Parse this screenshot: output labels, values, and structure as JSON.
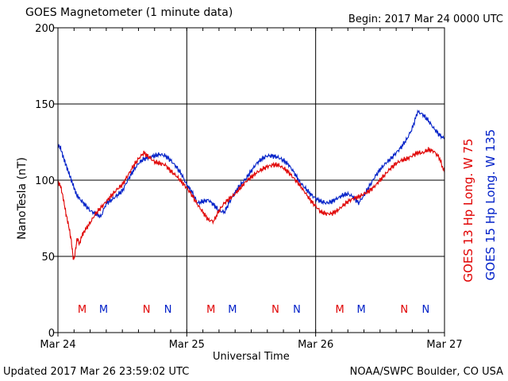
{
  "header": {
    "title": "GOES Magnetometer (1 minute data)",
    "begin": "Begin:  2017 Mar 24 0000 UTC"
  },
  "footer": {
    "updated": "Updated 2017 Mar 26 23:59:02 UTC",
    "source": "NOAA/SWPC Boulder, CO USA"
  },
  "colors": {
    "goes13": "#e00000",
    "goes15": "#0020c8"
  },
  "chart_data": {
    "type": "line",
    "title": "GOES Magnetometer (1 minute data)",
    "xlabel": "Universal Time",
    "ylabel": "NanoTesla (nT)",
    "xlim": [
      0,
      72
    ],
    "ylim": [
      0,
      200
    ],
    "yticks": [
      0,
      50,
      100,
      150,
      200
    ],
    "xticks": [
      {
        "hour": 0,
        "label": "Mar 24"
      },
      {
        "hour": 24,
        "label": "Mar 25"
      },
      {
        "hour": 48,
        "label": "Mar 26"
      },
      {
        "hour": 72,
        "label": "Mar 27"
      }
    ],
    "grid": true,
    "series": [
      {
        "name": "GOES 13 Hp",
        "legend": "GOES 13 Hp  Long. W 75",
        "color": "#e00000",
        "x": [
          0,
          0.5,
          1,
          1.5,
          2,
          2.5,
          2.8,
          3,
          3.3,
          3.6,
          4,
          4.5,
          5,
          6,
          7,
          8,
          9,
          10,
          11,
          12,
          13,
          14,
          15,
          16,
          17,
          18,
          19,
          20,
          21,
          22,
          23,
          24,
          25,
          26,
          27,
          28,
          29,
          30,
          31,
          32,
          33,
          34,
          35,
          36,
          37,
          38,
          39,
          40,
          41,
          42,
          43,
          44,
          45,
          46,
          47,
          48,
          49,
          50,
          51,
          52,
          53,
          54,
          55,
          56,
          57,
          58,
          59,
          60,
          61,
          62,
          63,
          64,
          65,
          66,
          67,
          68,
          69,
          70,
          71,
          72
        ],
        "y": [
          99,
          96,
          88,
          78,
          70,
          60,
          50,
          48,
          55,
          62,
          58,
          64,
          67,
          72,
          78,
          82,
          86,
          90,
          94,
          97,
          103,
          109,
          114,
          118,
          115,
          112,
          111,
          110,
          106,
          103,
          99,
          95,
          90,
          84,
          79,
          74,
          73,
          80,
          85,
          88,
          91,
          95,
          99,
          102,
          105,
          107,
          109,
          110,
          110,
          108,
          105,
          101,
          97,
          92,
          87,
          83,
          79,
          78,
          78,
          80,
          83,
          86,
          88,
          89,
          91,
          93,
          96,
          100,
          104,
          108,
          111,
          113,
          114,
          116,
          118,
          118,
          120,
          119,
          115,
          105
        ]
      },
      {
        "name": "GOES 15 Hp",
        "legend": "GOES 15 Hp  Long. W 135",
        "color": "#0020c8",
        "x": [
          0,
          0.5,
          1,
          1.5,
          2,
          2.5,
          3,
          3.5,
          4,
          5,
          6,
          7,
          8,
          9,
          10,
          11,
          12,
          13,
          14,
          15,
          16,
          17,
          18,
          19,
          20,
          21,
          22,
          23,
          24,
          25,
          26,
          27,
          28,
          29,
          30,
          31,
          32,
          33,
          34,
          35,
          36,
          37,
          38,
          39,
          40,
          41,
          42,
          43,
          44,
          45,
          46,
          47,
          48,
          49,
          50,
          51,
          52,
          53,
          54,
          55,
          56,
          57,
          58,
          59,
          60,
          61,
          62,
          63,
          64,
          65,
          66,
          67,
          68,
          69,
          70,
          71,
          72
        ],
        "y": [
          123,
          121,
          115,
          110,
          105,
          100,
          95,
          90,
          88,
          84,
          80,
          78,
          76,
          85,
          87,
          90,
          93,
          100,
          106,
          111,
          114,
          115,
          116,
          117,
          116,
          113,
          109,
          104,
          97,
          92,
          85,
          86,
          87,
          84,
          80,
          79,
          86,
          92,
          97,
          101,
          106,
          111,
          114,
          116,
          116,
          115,
          113,
          110,
          105,
          99,
          95,
          91,
          88,
          86,
          85,
          86,
          88,
          90,
          91,
          89,
          85,
          90,
          96,
          102,
          107,
          111,
          114,
          118,
          122,
          127,
          134,
          145,
          143,
          139,
          134,
          130,
          127
        ]
      }
    ],
    "markers": [
      {
        "hour": 4.5,
        "label": "M",
        "series": "GOES 13 Hp"
      },
      {
        "hour": 8.5,
        "label": "M",
        "series": "GOES 15 Hp"
      },
      {
        "hour": 16.5,
        "label": "N",
        "series": "GOES 13 Hp"
      },
      {
        "hour": 20.5,
        "label": "N",
        "series": "GOES 15 Hp"
      },
      {
        "hour": 28.5,
        "label": "M",
        "series": "GOES 13 Hp"
      },
      {
        "hour": 32.5,
        "label": "M",
        "series": "GOES 15 Hp"
      },
      {
        "hour": 40.5,
        "label": "N",
        "series": "GOES 13 Hp"
      },
      {
        "hour": 44.5,
        "label": "N",
        "series": "GOES 15 Hp"
      },
      {
        "hour": 52.5,
        "label": "M",
        "series": "GOES 13 Hp"
      },
      {
        "hour": 56.5,
        "label": "M",
        "series": "GOES 15 Hp"
      },
      {
        "hour": 64.5,
        "label": "N",
        "series": "GOES 13 Hp"
      },
      {
        "hour": 68.5,
        "label": "N",
        "series": "GOES 15 Hp"
      }
    ]
  }
}
